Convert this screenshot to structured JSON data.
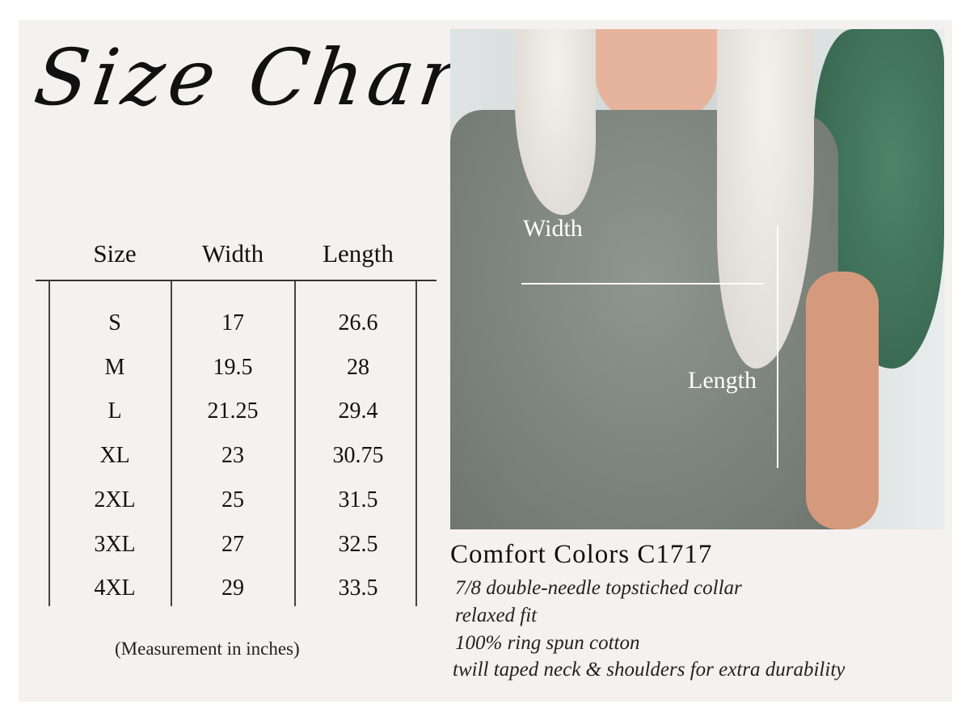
{
  "title": "Size Chart",
  "table": {
    "headers": [
      "Size",
      "Width",
      "Length"
    ],
    "rows": [
      [
        "S",
        "17",
        "26.6"
      ],
      [
        "M",
        "19.5",
        "28"
      ],
      [
        "L",
        "21.25",
        "29.4"
      ],
      [
        "XL",
        "23",
        "30.75"
      ],
      [
        "2XL",
        "25",
        "31.5"
      ],
      [
        "3XL",
        "27",
        "32.5"
      ],
      [
        "4XL",
        "29",
        "33.5"
      ]
    ],
    "note": "(Measurement in inches)"
  },
  "photo": {
    "width_label": "Width",
    "length_label": "Length"
  },
  "product": {
    "name": "Comfort Colors C1717",
    "features": [
      "7/8 double-needle topstiched collar",
      "relaxed fit",
      "100% ring spun cotton",
      "twill taped neck & shoulders for extra durability"
    ]
  }
}
